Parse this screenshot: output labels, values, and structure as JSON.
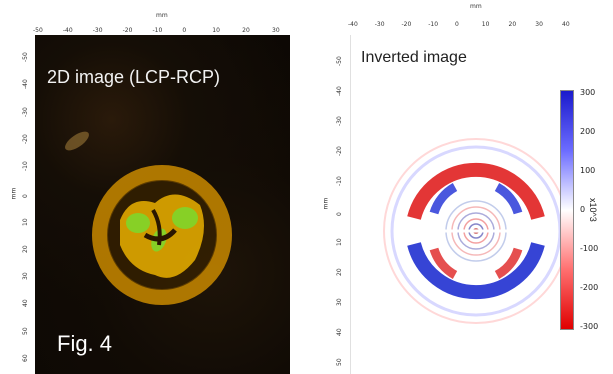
{
  "left_panel": {
    "title": "2D image (LCP-RCP)",
    "figure_label": "Fig. 4",
    "x_unit": "mm",
    "y_unit": "mm",
    "x_ticks": [
      "-50",
      "-40",
      "-30",
      "-20",
      "-10",
      "0",
      "10",
      "20",
      "30"
    ],
    "y_ticks": [
      "-50",
      "-40",
      "-30",
      "-20",
      "-10",
      "0",
      "10",
      "20",
      "30",
      "40",
      "50",
      "60"
    ]
  },
  "right_panel": {
    "title": "Inverted image",
    "x_unit": "mm",
    "y_unit": "mm",
    "x_ticks": [
      "-40",
      "-30",
      "-20",
      "-10",
      "0",
      "10",
      "20",
      "30",
      "40"
    ],
    "y_ticks": [
      "-50",
      "-40",
      "-30",
      "-20",
      "-10",
      "0",
      "10",
      "20",
      "30",
      "40",
      "50"
    ]
  },
  "colorbar": {
    "ticks": [
      "300",
      "200",
      "100",
      "0",
      "-100",
      "-200",
      "-300"
    ],
    "exponent_label": "x10^3",
    "colors": {
      "positive": "#1a1acc",
      "zero": "#ffffff",
      "negative": "#e00000"
    }
  }
}
